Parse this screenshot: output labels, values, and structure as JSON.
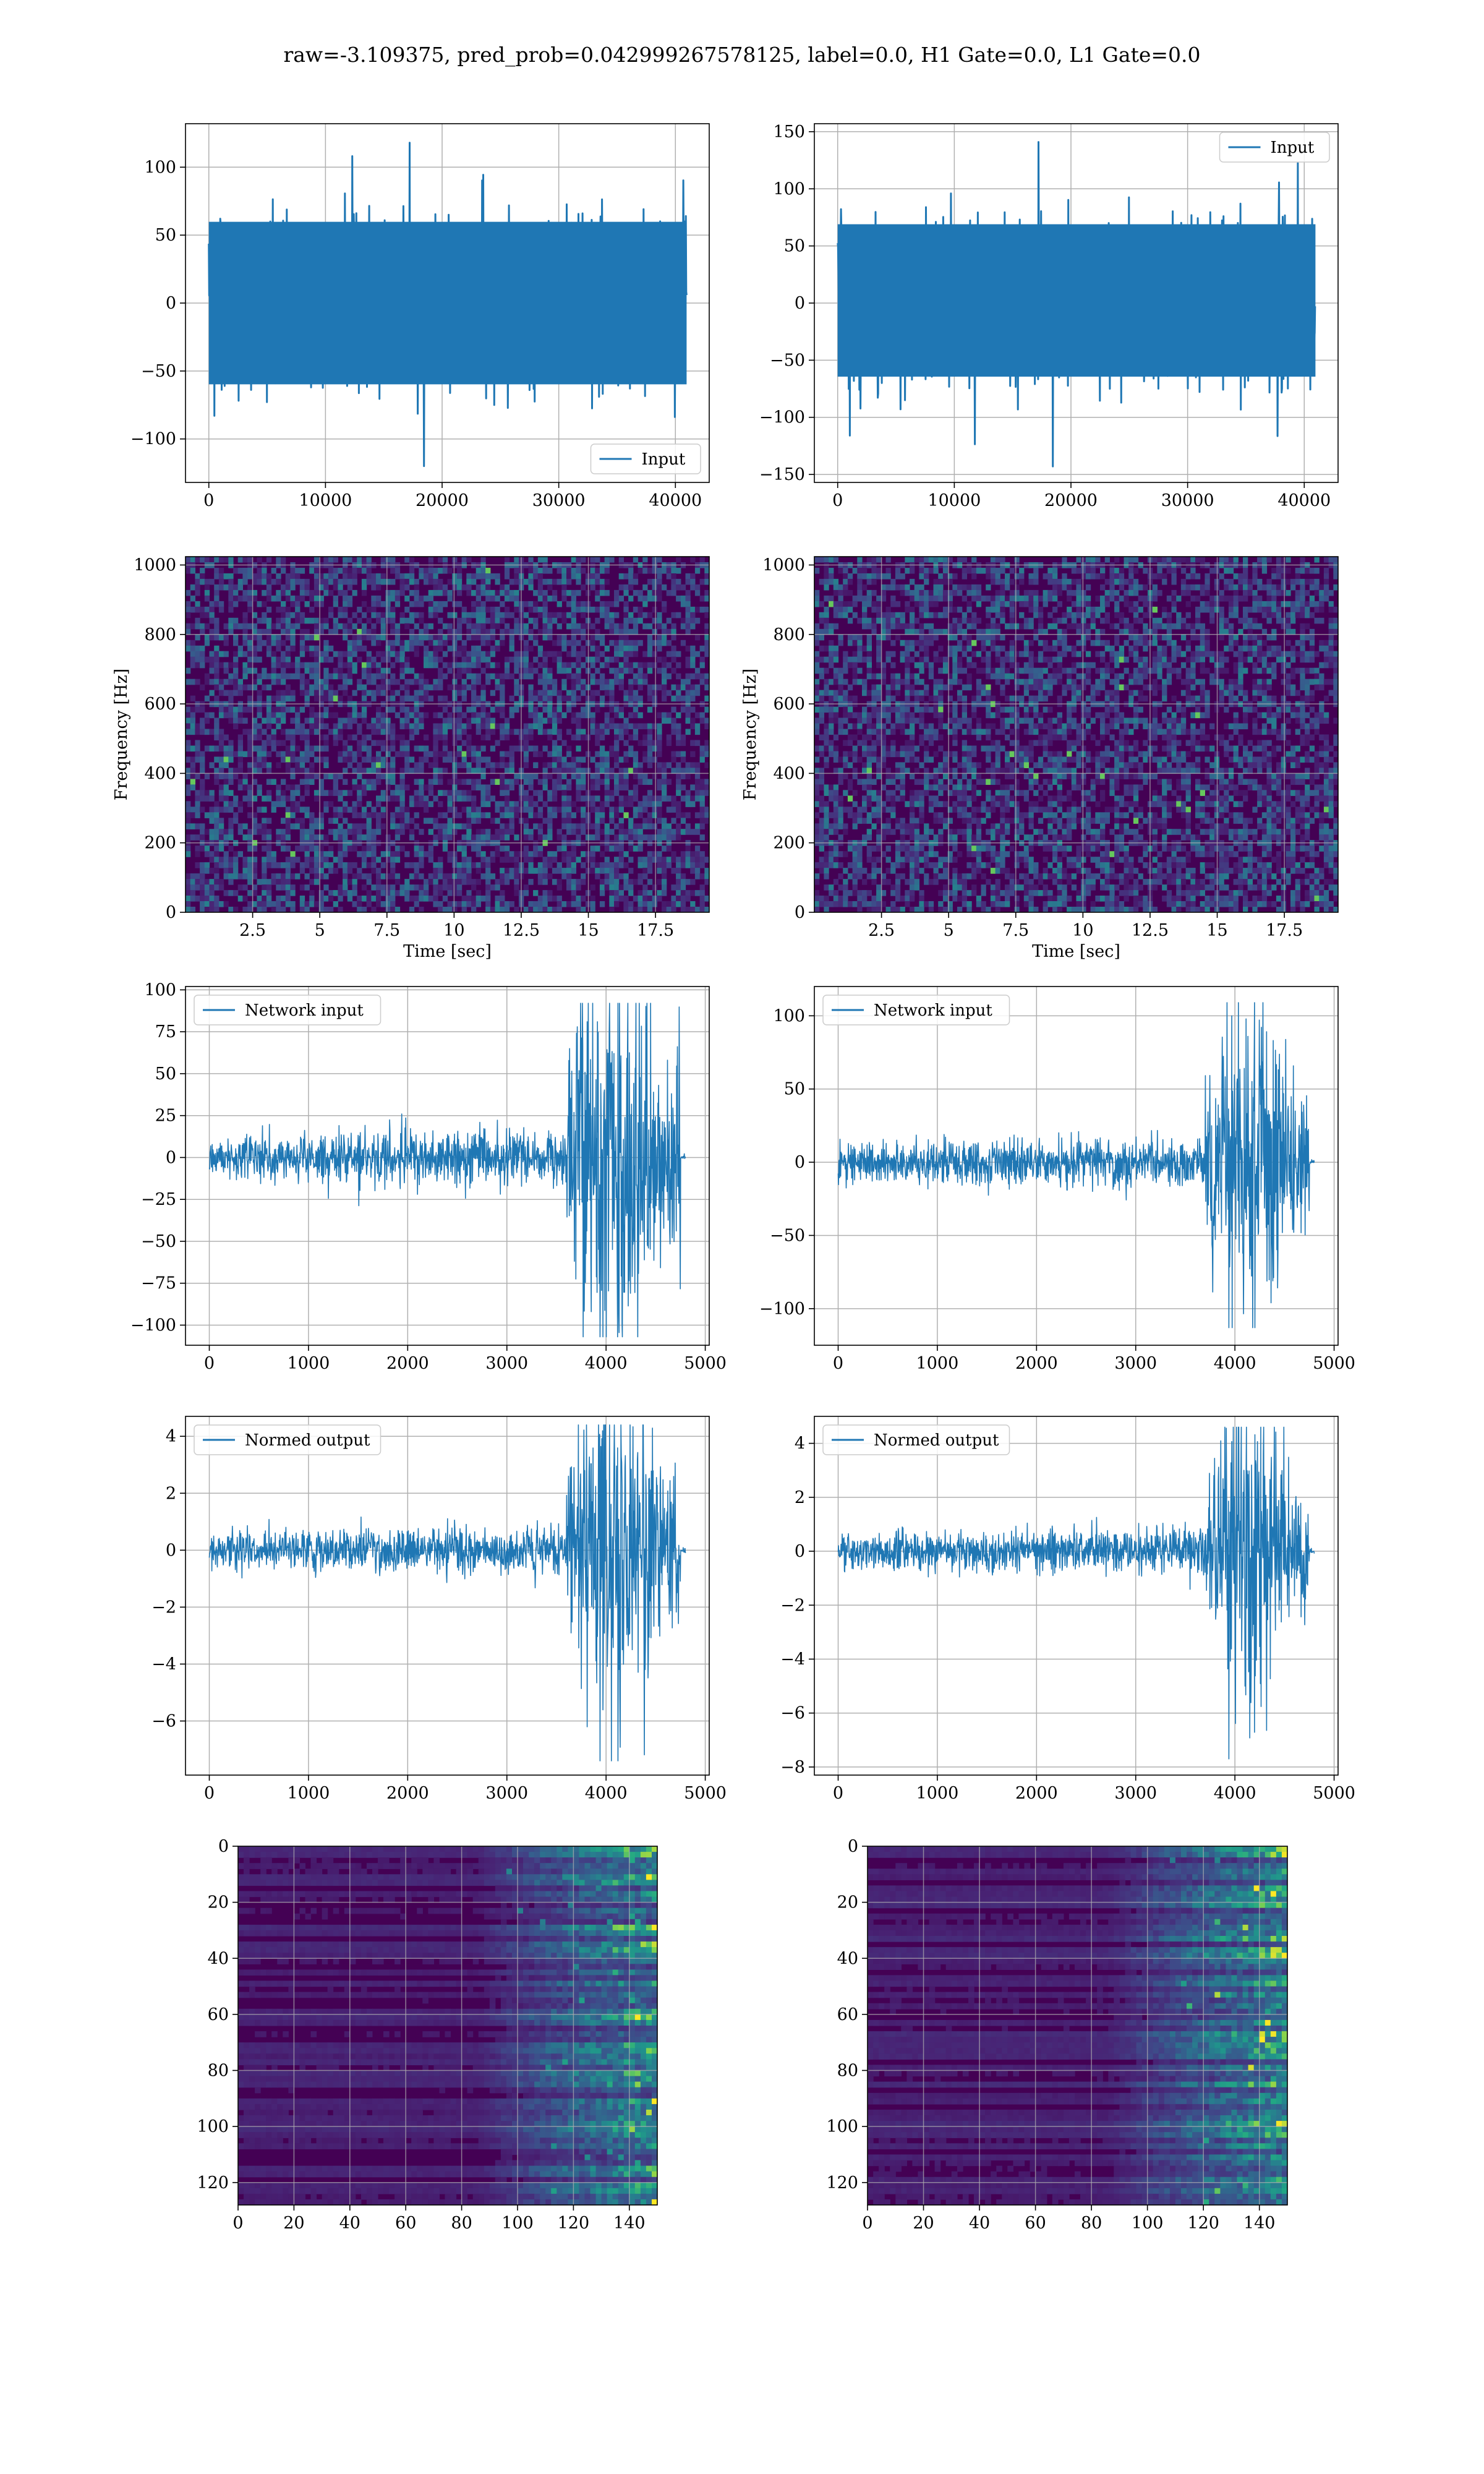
{
  "figure": {
    "suptitle": "raw=-3.109375, pred_prob=0.042999267578125, label=0.0, H1 Gate=0.0, L1 Gate=0.0"
  },
  "colors": {
    "series": "#1f77b4",
    "grid": "#b0b0b0",
    "viridis_low": "#440154",
    "viridis_mid": "#21918c",
    "viridis_high": "#fde725"
  },
  "chart_data": [
    {
      "id": "input_h1",
      "type": "line",
      "grid": true,
      "legend": {
        "label": "Input",
        "loc": "lower right"
      },
      "xlim": [
        -2000,
        42900
      ],
      "ylim": [
        -132,
        132
      ],
      "xticks": [
        0,
        10000,
        20000,
        30000,
        40000
      ],
      "yticks": [
        -100,
        -50,
        0,
        50,
        100
      ],
      "series": [
        {
          "name": "Input",
          "x_range": [
            0,
            40960
          ],
          "y_range": [
            -120,
            118
          ],
          "envelope": [
            -65,
            65
          ]
        }
      ]
    },
    {
      "id": "input_l1",
      "type": "line",
      "grid": true,
      "legend": {
        "label": "Input",
        "loc": "upper right"
      },
      "xlim": [
        -2000,
        42900
      ],
      "ylim": [
        -157,
        157
      ],
      "xticks": [
        0,
        10000,
        20000,
        30000,
        40000
      ],
      "yticks": [
        -150,
        -100,
        -50,
        0,
        50,
        100,
        150
      ],
      "series": [
        {
          "name": "Input",
          "x_range": [
            0,
            40960
          ],
          "y_range": [
            -143,
            141
          ],
          "envelope": [
            -70,
            75
          ]
        }
      ]
    },
    {
      "id": "spec_h1",
      "type": "heatmap",
      "grid": true,
      "colormap": "viridis",
      "xlabel": "Time [sec]",
      "ylabel": "Frequency [Hz]",
      "xlim": [
        0,
        19.5
      ],
      "ylim": [
        0,
        1024
      ],
      "xticks": [
        2.5,
        5.0,
        7.5,
        10.0,
        12.5,
        15.0,
        17.5
      ],
      "yticks": [
        0,
        200,
        400,
        600,
        800,
        1000
      ]
    },
    {
      "id": "spec_l1",
      "type": "heatmap",
      "grid": true,
      "colormap": "viridis",
      "xlabel": "Time [sec]",
      "ylabel": "Frequency [Hz]",
      "xlim": [
        0,
        19.5
      ],
      "ylim": [
        0,
        1024
      ],
      "xticks": [
        2.5,
        5.0,
        7.5,
        10.0,
        12.5,
        15.0,
        17.5
      ],
      "yticks": [
        0,
        200,
        400,
        600,
        800,
        1000
      ]
    },
    {
      "id": "net_h1",
      "type": "line",
      "grid": true,
      "legend": {
        "label": "Network input",
        "loc": "upper left"
      },
      "xlim": [
        -240,
        5040
      ],
      "ylim": [
        -112,
        102
      ],
      "xticks": [
        0,
        1000,
        2000,
        3000,
        4000,
        5000
      ],
      "yticks": [
        -100,
        -75,
        -50,
        -25,
        0,
        25,
        50,
        75,
        100
      ],
      "series": [
        {
          "name": "Network input",
          "x_range": [
            0,
            4800
          ],
          "y_range": [
            -107,
            92
          ],
          "noise": 12,
          "burst_start": 3600,
          "burst_peak": 72,
          "end": 4750
        }
      ]
    },
    {
      "id": "net_l1",
      "type": "line",
      "grid": true,
      "legend": {
        "label": "Network input",
        "loc": "upper left"
      },
      "xlim": [
        -240,
        5040
      ],
      "ylim": [
        -125,
        120
      ],
      "xticks": [
        0,
        1000,
        2000,
        3000,
        4000,
        5000
      ],
      "yticks": [
        -100,
        -50,
        0,
        50,
        100
      ],
      "series": [
        {
          "name": "Network input",
          "x_range": [
            0,
            4800
          ],
          "y_range": [
            -113,
            109
          ],
          "noise": 12,
          "burst_start": 3700,
          "burst_peak": 62,
          "end": 4750
        }
      ]
    },
    {
      "id": "norm_h1",
      "type": "line",
      "grid": true,
      "legend": {
        "label": "Normed output",
        "loc": "upper left"
      },
      "xlim": [
        -240,
        5040
      ],
      "ylim": [
        -7.9,
        4.7
      ],
      "xticks": [
        0,
        1000,
        2000,
        3000,
        4000,
        5000
      ],
      "yticks": [
        -6,
        -4,
        -2,
        0,
        2,
        4
      ],
      "series": [
        {
          "name": "Normed output",
          "x_range": [
            0,
            4800
          ],
          "y_range": [
            -7.4,
            4.4
          ],
          "noise": 0.6,
          "burst_start": 3600,
          "burst_peak": 3.6,
          "end": 4750
        }
      ]
    },
    {
      "id": "norm_l1",
      "type": "line",
      "grid": true,
      "legend": {
        "label": "Normed output",
        "loc": "upper left"
      },
      "xlim": [
        -240,
        5040
      ],
      "ylim": [
        -8.3,
        5.0
      ],
      "xticks": [
        0,
        1000,
        2000,
        3000,
        4000,
        5000
      ],
      "yticks": [
        -8,
        -6,
        -4,
        -2,
        0,
        2,
        4
      ],
      "series": [
        {
          "name": "Normed output",
          "x_range": [
            0,
            4800
          ],
          "y_range": [
            -7.7,
            4.6
          ],
          "noise": 0.6,
          "burst_start": 3700,
          "burst_peak": 3.2,
          "end": 4750
        }
      ]
    },
    {
      "id": "feat_h1",
      "type": "heatmap",
      "grid": true,
      "colormap": "viridis",
      "xlim": [
        0,
        150
      ],
      "ylim": [
        128,
        0
      ],
      "xticks": [
        0,
        20,
        40,
        60,
        80,
        100,
        120,
        140
      ],
      "yticks": [
        0,
        20,
        40,
        60,
        80,
        100,
        120
      ],
      "rows": 128,
      "cols": 150,
      "activity_start_col": 85
    },
    {
      "id": "feat_l1",
      "type": "heatmap",
      "grid": true,
      "colormap": "viridis",
      "xlim": [
        0,
        150
      ],
      "ylim": [
        128,
        0
      ],
      "xticks": [
        0,
        20,
        40,
        60,
        80,
        100,
        120,
        140
      ],
      "yticks": [
        0,
        20,
        40,
        60,
        80,
        100,
        120
      ],
      "rows": 128,
      "cols": 150,
      "activity_start_col": 85
    }
  ]
}
